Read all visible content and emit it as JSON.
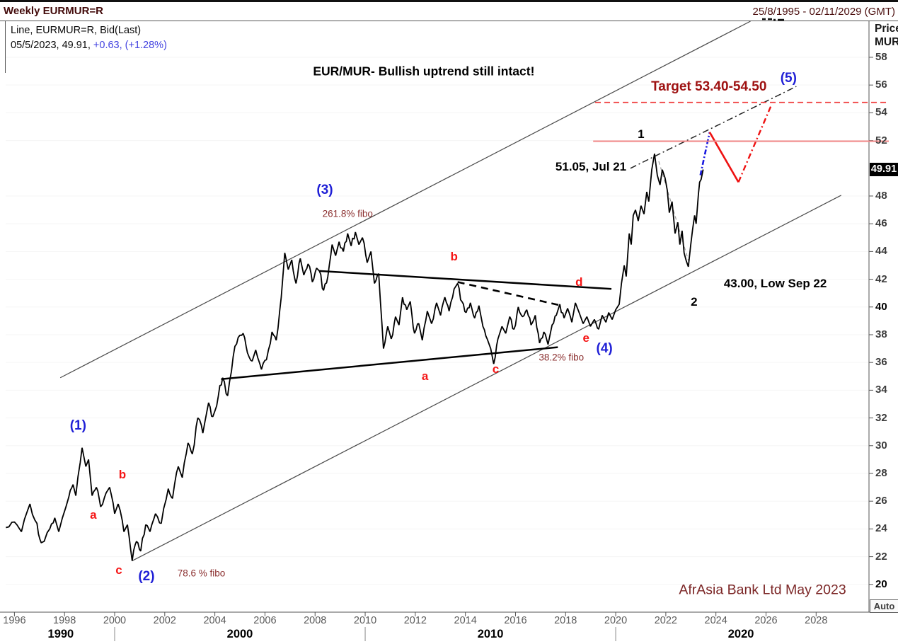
{
  "window": {
    "title": "Weekly EURMUR=R",
    "date_range": "25/8/1995 - 02/11/2029 (GMT)"
  },
  "legend": {
    "line1": "Line, EURMUR=R, Bid(Last)",
    "line2_date_price": "05/5/2023, 49.91, ",
    "line2_change": "+0.63, (+1.28%)"
  },
  "price_axis": {
    "title": "Price",
    "currency": "MUR",
    "last_price": "49.91",
    "auto_label": "Auto"
  },
  "colors": {
    "maroon_title": "#420a0a",
    "blue_wave": "#1f1fd6",
    "red_letter": "#f51616",
    "target_red": "#9e1111",
    "fibo_brown": "#8b2f2f",
    "credit_maroon": "#7c2727",
    "change_blue": "#4343e0",
    "projection_blue": "#1818e0",
    "projection_red": "#ee1111",
    "resistance_salmon": "#f28c8c"
  },
  "chart_data": {
    "type": "line",
    "instrument": "EURMUR=R",
    "period": "Weekly",
    "title": "EUR/MUR- Bullish uptrend still intact!",
    "x_axis": {
      "min": 1995.65,
      "max": 2030.11,
      "tick_years": [
        1996,
        1998,
        2000,
        2002,
        2004,
        2006,
        2008,
        2010,
        2012,
        2014,
        2016,
        2018,
        2020,
        2022,
        2024,
        2026,
        2028
      ],
      "decade_labels": [
        {
          "label": "1990",
          "center": 1997.85
        },
        {
          "label": "2000",
          "center": 2005.0
        },
        {
          "label": "2010",
          "center": 2015.0
        },
        {
          "label": "2020",
          "center": 2025.0
        }
      ],
      "decade_dividers": [
        2000,
        2010,
        2020
      ]
    },
    "y_axis": {
      "min": 18.0,
      "max": 60.6,
      "unit": "MUR",
      "ticks": [
        58,
        56,
        54,
        52,
        48,
        46,
        44,
        42,
        40,
        38,
        36,
        34,
        32,
        30,
        28,
        26,
        24,
        22,
        20
      ],
      "bold_ticks": [
        40,
        20
      ]
    },
    "levels": {
      "target_zone": "53.40-54.50",
      "target_dashed_line": 54.75,
      "resistance_line": 51.95,
      "swing_high": {
        "label": "51.05, Jul 21",
        "value": 51.05
      },
      "swing_low": {
        "label": "43.00, Low Sep 22",
        "value": 43.0
      },
      "last": 49.91
    },
    "series": {
      "name": "EURMUR=R Bid(Last) Weekly",
      "points": [
        [
          1995.66,
          24.1
        ],
        [
          1996.0,
          24.5
        ],
        [
          1996.28,
          23.8
        ],
        [
          1996.62,
          25.8
        ],
        [
          1996.9,
          24.4
        ],
        [
          1997.07,
          23.0
        ],
        [
          1997.41,
          24.0
        ],
        [
          1997.61,
          24.8
        ],
        [
          1997.77,
          23.8
        ],
        [
          1998.17,
          26.3
        ],
        [
          1998.34,
          27.2
        ],
        [
          1998.45,
          26.4
        ],
        [
          1998.7,
          29.85
        ],
        [
          1998.85,
          28.5
        ],
        [
          1998.96,
          29.0
        ],
        [
          1999.1,
          26.4
        ],
        [
          1999.27,
          27.0
        ],
        [
          1999.44,
          25.6
        ],
        [
          1999.66,
          26.6
        ],
        [
          1999.8,
          27.0
        ],
        [
          2000.0,
          25.1
        ],
        [
          2000.14,
          25.8
        ],
        [
          2000.37,
          23.8
        ],
        [
          2000.51,
          24.3
        ],
        [
          2000.7,
          21.7
        ],
        [
          2000.87,
          23.1
        ],
        [
          2001.04,
          22.4
        ],
        [
          2001.24,
          24.3
        ],
        [
          2001.41,
          23.8
        ],
        [
          2001.63,
          25.1
        ],
        [
          2001.86,
          24.4
        ],
        [
          2002.14,
          26.9
        ],
        [
          2002.31,
          26.2
        ],
        [
          2002.54,
          28.5
        ],
        [
          2002.7,
          27.7
        ],
        [
          2002.93,
          30.2
        ],
        [
          2003.1,
          29.4
        ],
        [
          2003.32,
          32.0
        ],
        [
          2003.52,
          30.9
        ],
        [
          2003.75,
          33.1
        ],
        [
          2003.92,
          32.1
        ],
        [
          2004.14,
          33.6
        ],
        [
          2004.31,
          34.9
        ],
        [
          2004.51,
          33.6
        ],
        [
          2004.73,
          36.4
        ],
        [
          2004.93,
          37.8
        ],
        [
          2005.13,
          38.1
        ],
        [
          2005.3,
          36.7
        ],
        [
          2005.49,
          36.1
        ],
        [
          2005.63,
          36.9
        ],
        [
          2005.86,
          35.5
        ],
        [
          2006.06,
          36.2
        ],
        [
          2006.28,
          38.2
        ],
        [
          2006.45,
          37.6
        ],
        [
          2006.65,
          40.7
        ],
        [
          2006.79,
          43.9
        ],
        [
          2006.93,
          42.7
        ],
        [
          2007.07,
          43.4
        ],
        [
          2007.24,
          41.7
        ],
        [
          2007.41,
          43.5
        ],
        [
          2007.55,
          42.3
        ],
        [
          2007.72,
          43.1
        ],
        [
          2007.89,
          41.8
        ],
        [
          2008.06,
          42.8
        ],
        [
          2008.17,
          42.6
        ],
        [
          2008.34,
          41.2
        ],
        [
          2008.51,
          42.2
        ],
        [
          2008.68,
          44.5
        ],
        [
          2008.82,
          43.7
        ],
        [
          2008.96,
          44.7
        ],
        [
          2009.13,
          44.0
        ],
        [
          2009.3,
          45.3
        ],
        [
          2009.44,
          44.4
        ],
        [
          2009.61,
          45.4
        ],
        [
          2009.75,
          44.5
        ],
        [
          2009.89,
          45.0
        ],
        [
          2010.08,
          43.2
        ],
        [
          2010.23,
          44.0
        ],
        [
          2010.37,
          41.7
        ],
        [
          2010.54,
          42.4
        ],
        [
          2010.73,
          37.0
        ],
        [
          2010.9,
          38.6
        ],
        [
          2011.04,
          37.7
        ],
        [
          2011.21,
          39.3
        ],
        [
          2011.35,
          38.7
        ],
        [
          2011.49,
          40.7
        ],
        [
          2011.66,
          39.8
        ],
        [
          2011.8,
          40.4
        ],
        [
          2011.97,
          38.1
        ],
        [
          2012.14,
          38.8
        ],
        [
          2012.28,
          37.6
        ],
        [
          2012.48,
          39.7
        ],
        [
          2012.65,
          38.8
        ],
        [
          2012.85,
          40.3
        ],
        [
          2013.01,
          39.4
        ],
        [
          2013.18,
          40.7
        ],
        [
          2013.35,
          39.7
        ],
        [
          2013.55,
          41.3
        ],
        [
          2013.69,
          41.7
        ],
        [
          2013.86,
          40.4
        ],
        [
          2014.03,
          39.6
        ],
        [
          2014.2,
          40.3
        ],
        [
          2014.37,
          39.2
        ],
        [
          2014.54,
          40.1
        ],
        [
          2014.7,
          38.6
        ],
        [
          2014.87,
          37.7
        ],
        [
          2015.01,
          37.0
        ],
        [
          2015.13,
          35.9
        ],
        [
          2015.3,
          37.7
        ],
        [
          2015.46,
          38.6
        ],
        [
          2015.61,
          38.1
        ],
        [
          2015.77,
          39.3
        ],
        [
          2015.94,
          38.4
        ],
        [
          2016.11,
          40.0
        ],
        [
          2016.28,
          39.3
        ],
        [
          2016.45,
          39.8
        ],
        [
          2016.62,
          38.7
        ],
        [
          2016.79,
          39.4
        ],
        [
          2016.96,
          37.4
        ],
        [
          2017.13,
          38.2
        ],
        [
          2017.3,
          37.3
        ],
        [
          2017.46,
          38.7
        ],
        [
          2017.63,
          39.4
        ],
        [
          2017.77,
          40.2
        ],
        [
          2017.94,
          39.2
        ],
        [
          2018.08,
          39.9
        ],
        [
          2018.25,
          38.9
        ],
        [
          2018.39,
          40.3
        ],
        [
          2018.54,
          39.6
        ],
        [
          2018.7,
          38.8
        ],
        [
          2018.85,
          39.3
        ],
        [
          2018.99,
          38.6
        ],
        [
          2019.15,
          39.1
        ],
        [
          2019.32,
          38.4
        ],
        [
          2019.46,
          39.4
        ],
        [
          2019.61,
          38.9
        ],
        [
          2019.72,
          39.6
        ],
        [
          2019.86,
          39.1
        ],
        [
          2020.0,
          39.8
        ],
        [
          2020.14,
          40.2
        ],
        [
          2020.23,
          41.7
        ],
        [
          2020.34,
          43.0
        ],
        [
          2020.42,
          42.2
        ],
        [
          2020.54,
          45.3
        ],
        [
          2020.62,
          44.5
        ],
        [
          2020.7,
          46.6
        ],
        [
          2020.79,
          47.0
        ],
        [
          2020.9,
          46.2
        ],
        [
          2021.01,
          47.3
        ],
        [
          2021.13,
          46.7
        ],
        [
          2021.24,
          48.3
        ],
        [
          2021.32,
          47.6
        ],
        [
          2021.44,
          49.9
        ],
        [
          2021.55,
          51.05
        ],
        [
          2021.66,
          49.5
        ],
        [
          2021.77,
          48.8
        ],
        [
          2021.86,
          49.9
        ],
        [
          2021.97,
          49.3
        ],
        [
          2022.06,
          48.4
        ],
        [
          2022.14,
          46.8
        ],
        [
          2022.25,
          47.6
        ],
        [
          2022.37,
          45.3
        ],
        [
          2022.48,
          46.1
        ],
        [
          2022.56,
          44.5
        ],
        [
          2022.65,
          45.5
        ],
        [
          2022.73,
          43.9
        ],
        [
          2022.82,
          43.3
        ],
        [
          2022.9,
          42.9
        ],
        [
          2022.99,
          44.4
        ],
        [
          2023.07,
          45.6
        ],
        [
          2023.15,
          46.6
        ],
        [
          2023.21,
          46.0
        ],
        [
          2023.3,
          48.1
        ],
        [
          2023.35,
          49.0
        ],
        [
          2023.41,
          49.2
        ],
        [
          2023.49,
          49.91
        ]
      ]
    },
    "overlay_lines": [
      {
        "name": "upper-channel-line",
        "style": "thin-gray",
        "points": [
          [
            1997.83,
            34.9
          ],
          [
            2025.38,
            60.6
          ]
        ]
      },
      {
        "name": "lower-channel-line",
        "style": "thin-gray",
        "points": [
          [
            2000.7,
            21.7
          ],
          [
            2029.0,
            48.05
          ]
        ]
      },
      {
        "name": "triangle-top-line",
        "style": "black-thick",
        "points": [
          [
            2008.17,
            42.6
          ],
          [
            2019.83,
            41.3
          ]
        ]
      },
      {
        "name": "triangle-bottom-line",
        "style": "black-thick",
        "points": [
          [
            2004.25,
            34.8
          ],
          [
            2017.69,
            37.1
          ]
        ]
      },
      {
        "name": "wedge-dashed-line",
        "style": "black-dashed-thick",
        "points": [
          [
            2013.69,
            41.8
          ],
          [
            2017.83,
            40.1
          ]
        ]
      },
      {
        "name": "wave5-trend-dashdot",
        "style": "black-dashdot",
        "points": [
          [
            2020.59,
            50.0
          ],
          [
            2027.21,
            55.9
          ]
        ]
      },
      {
        "name": "decline-gray-dashed",
        "style": "gray-dashed",
        "points": [
          [
            2021.72,
            50.5
          ],
          [
            2022.96,
            43.0
          ]
        ]
      },
      {
        "name": "projection-blue-dashdot",
        "style": "blue-dashdot",
        "points": [
          [
            2023.38,
            49.5
          ],
          [
            2023.75,
            52.6
          ]
        ]
      },
      {
        "name": "projection-red-down",
        "style": "red-solid",
        "points": [
          [
            2023.75,
            52.6
          ],
          [
            2024.9,
            49.0
          ]
        ]
      },
      {
        "name": "projection-red-up",
        "style": "red-dashdot",
        "points": [
          [
            2024.9,
            49.0
          ],
          [
            2026.2,
            54.5
          ]
        ]
      },
      {
        "name": "target-dashed-line",
        "style": "red-dashed",
        "points": [
          [
            2019.18,
            54.75
          ],
          [
            2030.9,
            54.75
          ]
        ]
      },
      {
        "name": "resistance-salmon-line",
        "style": "salmon",
        "points": [
          [
            2019.1,
            51.95
          ],
          [
            2030.9,
            51.95
          ]
        ]
      }
    ],
    "annotations": [
      {
        "name": "chart-headline",
        "text": "EUR/MUR- Bullish uptrend still intact!",
        "year": 2012.34,
        "price": 57.0,
        "style": "headline"
      },
      {
        "name": "target-label",
        "text": "Target 53.40-54.50",
        "year": 2023.72,
        "price": 55.85,
        "style": "target"
      },
      {
        "name": "wave-1-label",
        "text": "(1)",
        "year": 1998.54,
        "price": 31.4,
        "style": "blue"
      },
      {
        "name": "wave-2-label",
        "text": "(2)",
        "year": 2001.27,
        "price": 20.55,
        "style": "blue"
      },
      {
        "name": "wave-3-label",
        "text": "(3)",
        "year": 2008.39,
        "price": 48.4,
        "style": "blue"
      },
      {
        "name": "wave-4-label",
        "text": "(4)",
        "year": 2019.55,
        "price": 37.0,
        "style": "blue"
      },
      {
        "name": "wave-5-label",
        "text": "(5)",
        "year": 2026.9,
        "price": 56.45,
        "style": "blue"
      },
      {
        "name": "letter-a1-label",
        "text": "a",
        "year": 1999.15,
        "price": 25.0,
        "style": "red"
      },
      {
        "name": "letter-b1-label",
        "text": "b",
        "year": 2000.31,
        "price": 27.9,
        "style": "red"
      },
      {
        "name": "letter-c1-label",
        "text": "c",
        "year": 2000.17,
        "price": 21.0,
        "style": "red"
      },
      {
        "name": "letter-a2-label",
        "text": "a",
        "year": 2012.39,
        "price": 35.0,
        "style": "red"
      },
      {
        "name": "letter-b2-label",
        "text": "b",
        "year": 2013.55,
        "price": 43.6,
        "style": "red"
      },
      {
        "name": "letter-c2-label",
        "text": "c",
        "year": 2015.21,
        "price": 35.5,
        "style": "red"
      },
      {
        "name": "letter-d2-label",
        "text": "d",
        "year": 2018.54,
        "price": 41.75,
        "style": "red"
      },
      {
        "name": "letter-e2-label",
        "text": "e",
        "year": 2018.82,
        "price": 37.75,
        "style": "red"
      },
      {
        "name": "wave-one-label",
        "text": "1",
        "year": 2021.01,
        "price": 52.45,
        "style": "blackmd"
      },
      {
        "name": "wave-two-label",
        "text": "2",
        "year": 2023.13,
        "price": 40.35,
        "style": "blackmd"
      },
      {
        "name": "swing-high-label",
        "text": "51.05, Jul 21",
        "year": 2019.01,
        "price": 50.1,
        "style": "blackmd"
      },
      {
        "name": "swing-low-label",
        "text": "43.00, Low Sep 22",
        "year": 2026.37,
        "price": 41.65,
        "style": "blackmd"
      },
      {
        "name": "fibo-2618-label",
        "text": "261.8% fibo",
        "year": 2009.3,
        "price": 46.7,
        "style": "fibo"
      },
      {
        "name": "fibo-786-label",
        "text": "78.6 % fibo",
        "year": 2003.46,
        "price": 20.8,
        "style": "fibo"
      },
      {
        "name": "fibo-382-label",
        "text": "38.2% fibo",
        "year": 2017.83,
        "price": 36.35,
        "style": "fibo"
      },
      {
        "name": "credit-label",
        "text": "AfrAsia Bank Ltd May 2023",
        "year": 2025.86,
        "price": 19.6,
        "style": "credit"
      }
    ],
    "decor": {
      "top_clipped_marks": [
        [
          1077,
          27,
          5
        ],
        [
          1085,
          27,
          6
        ],
        [
          1093,
          28,
          3
        ],
        [
          1099,
          28,
          9
        ]
      ]
    }
  }
}
